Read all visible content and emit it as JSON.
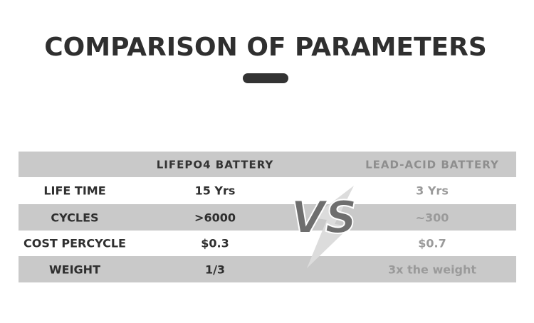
{
  "header": {
    "title": "COMPARISON OF PARAMETERS"
  },
  "table": {
    "columns": [
      "LIFEPO4 BATTERY",
      "LEAD-ACID BATTERY"
    ],
    "rows": [
      [
        "LIFE TIME",
        "15 Yrs",
        "3 Yrs"
      ],
      [
        "CYCLES",
        ">6000",
        "~300"
      ],
      [
        "COST PERCYCLE",
        "$0.3",
        "$0.7"
      ],
      [
        "WEIGHT",
        "1/3",
        "3x the weight"
      ]
    ]
  },
  "vs_label": "VS"
}
